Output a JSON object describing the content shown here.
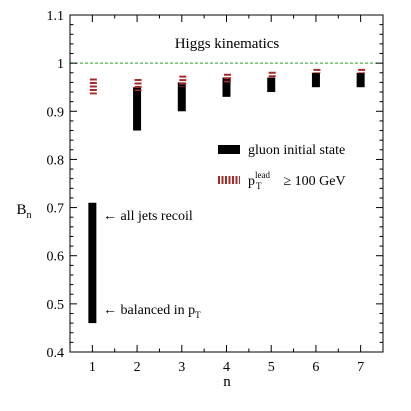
{
  "chart_data": {
    "type": "range-bar",
    "title": "Higgs kinematics",
    "xlabel": "n",
    "ylabel": "B",
    "ylabel_sub": "n",
    "xlim": [
      0.5,
      7.5
    ],
    "ylim": [
      0.4,
      1.1
    ],
    "xticks": [
      1,
      2,
      3,
      4,
      5,
      6,
      7
    ],
    "yticks": [
      0.4,
      0.5,
      0.6,
      0.7,
      0.8,
      0.9,
      1.0,
      1.1
    ],
    "ytick_labels": [
      "0.4",
      "0.5",
      "0.6",
      "0.7",
      "0.8",
      "0.9",
      "1",
      "1.1"
    ],
    "reference_line": {
      "y": 1.0,
      "style": "dashed",
      "color": "#2ca02c"
    },
    "series": [
      {
        "name": "gluon initial state",
        "color": "#000000",
        "style": "solid",
        "points": [
          {
            "x": 1,
            "low": 0.46,
            "high": 0.71
          },
          {
            "x": 2,
            "low": 0.86,
            "high": 0.95
          },
          {
            "x": 3,
            "low": 0.9,
            "high": 0.96
          },
          {
            "x": 4,
            "low": 0.93,
            "high": 0.97
          },
          {
            "x": 5,
            "low": 0.94,
            "high": 0.97
          },
          {
            "x": 6,
            "low": 0.95,
            "high": 0.98
          },
          {
            "x": 7,
            "low": 0.95,
            "high": 0.98
          }
        ]
      },
      {
        "name_parts": {
          "p": "p",
          "sub": "T",
          "sup": "lead",
          "rest": " ≥ 100 GeV"
        },
        "color": "#a52a2a",
        "style": "dashed",
        "points": [
          {
            "x": 1,
            "low": 0.935,
            "high": 0.968
          },
          {
            "x": 2,
            "low": 0.942,
            "high": 0.967
          },
          {
            "x": 3,
            "low": 0.951,
            "high": 0.974
          },
          {
            "x": 4,
            "low": 0.96,
            "high": 0.978
          },
          {
            "x": 5,
            "low": 0.97,
            "high": 0.982
          },
          {
            "x": 6,
            "low": 0.979,
            "high": 0.988
          },
          {
            "x": 7,
            "low": 0.979,
            "high": 0.988
          }
        ]
      }
    ],
    "annotations": [
      {
        "text": "← all jets recoil",
        "y": 0.71,
        "x": 1
      },
      {
        "text_main": "← balanced in p",
        "text_sub": "T",
        "y": 0.46,
        "x": 1
      }
    ],
    "legend_position": "right-middle"
  }
}
